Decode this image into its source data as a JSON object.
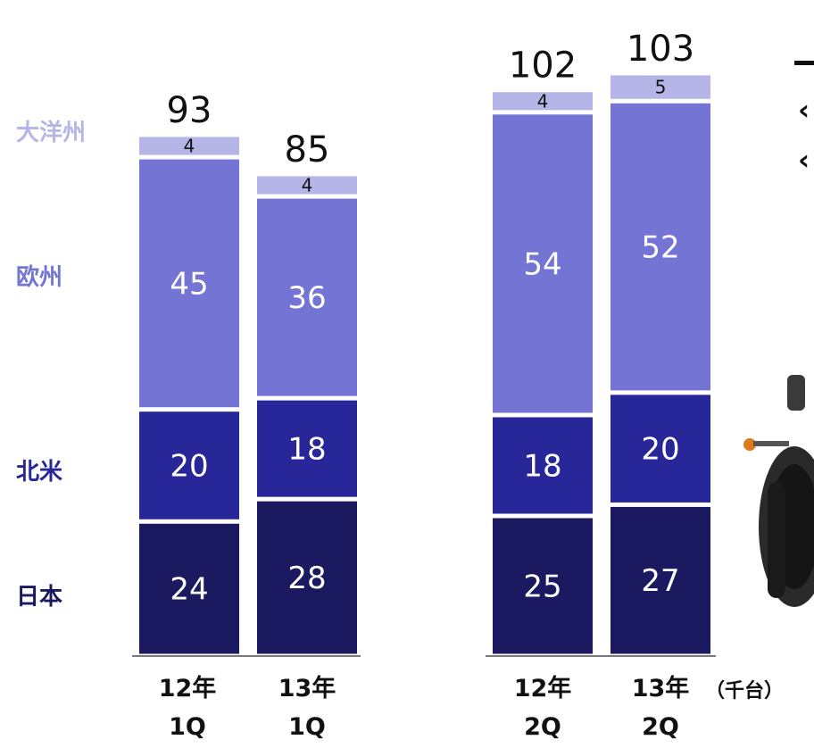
{
  "chart_data": {
    "type": "stacked-bar",
    "unit": "（千台）",
    "categories": [
      {
        "line1": "12年",
        "line2": "1Q"
      },
      {
        "line1": "13年",
        "line2": "1Q"
      },
      {
        "line1": "12年",
        "line2": "2Q"
      },
      {
        "line1": "13年",
        "line2": "2Q"
      }
    ],
    "totals": [
      "93",
      "85",
      "102",
      "103"
    ],
    "series": [
      {
        "name": "日本",
        "color": "#1b1a60",
        "text_color": "#ffffff",
        "values": [
          24,
          28,
          25,
          27
        ]
      },
      {
        "name": "北米",
        "color": "#28279a",
        "text_color": "#ffffff",
        "values": [
          20,
          18,
          18,
          20
        ]
      },
      {
        "name": "欧州",
        "color": "#7374d4",
        "text_color": "#ffffff",
        "values": [
          45,
          36,
          54,
          52
        ]
      },
      {
        "name": "大洋州",
        "color": "#b5b6e7",
        "text_color": "#111111",
        "values": [
          4,
          4,
          4,
          5
        ]
      }
    ],
    "legend_placement": "left",
    "grid": false
  }
}
